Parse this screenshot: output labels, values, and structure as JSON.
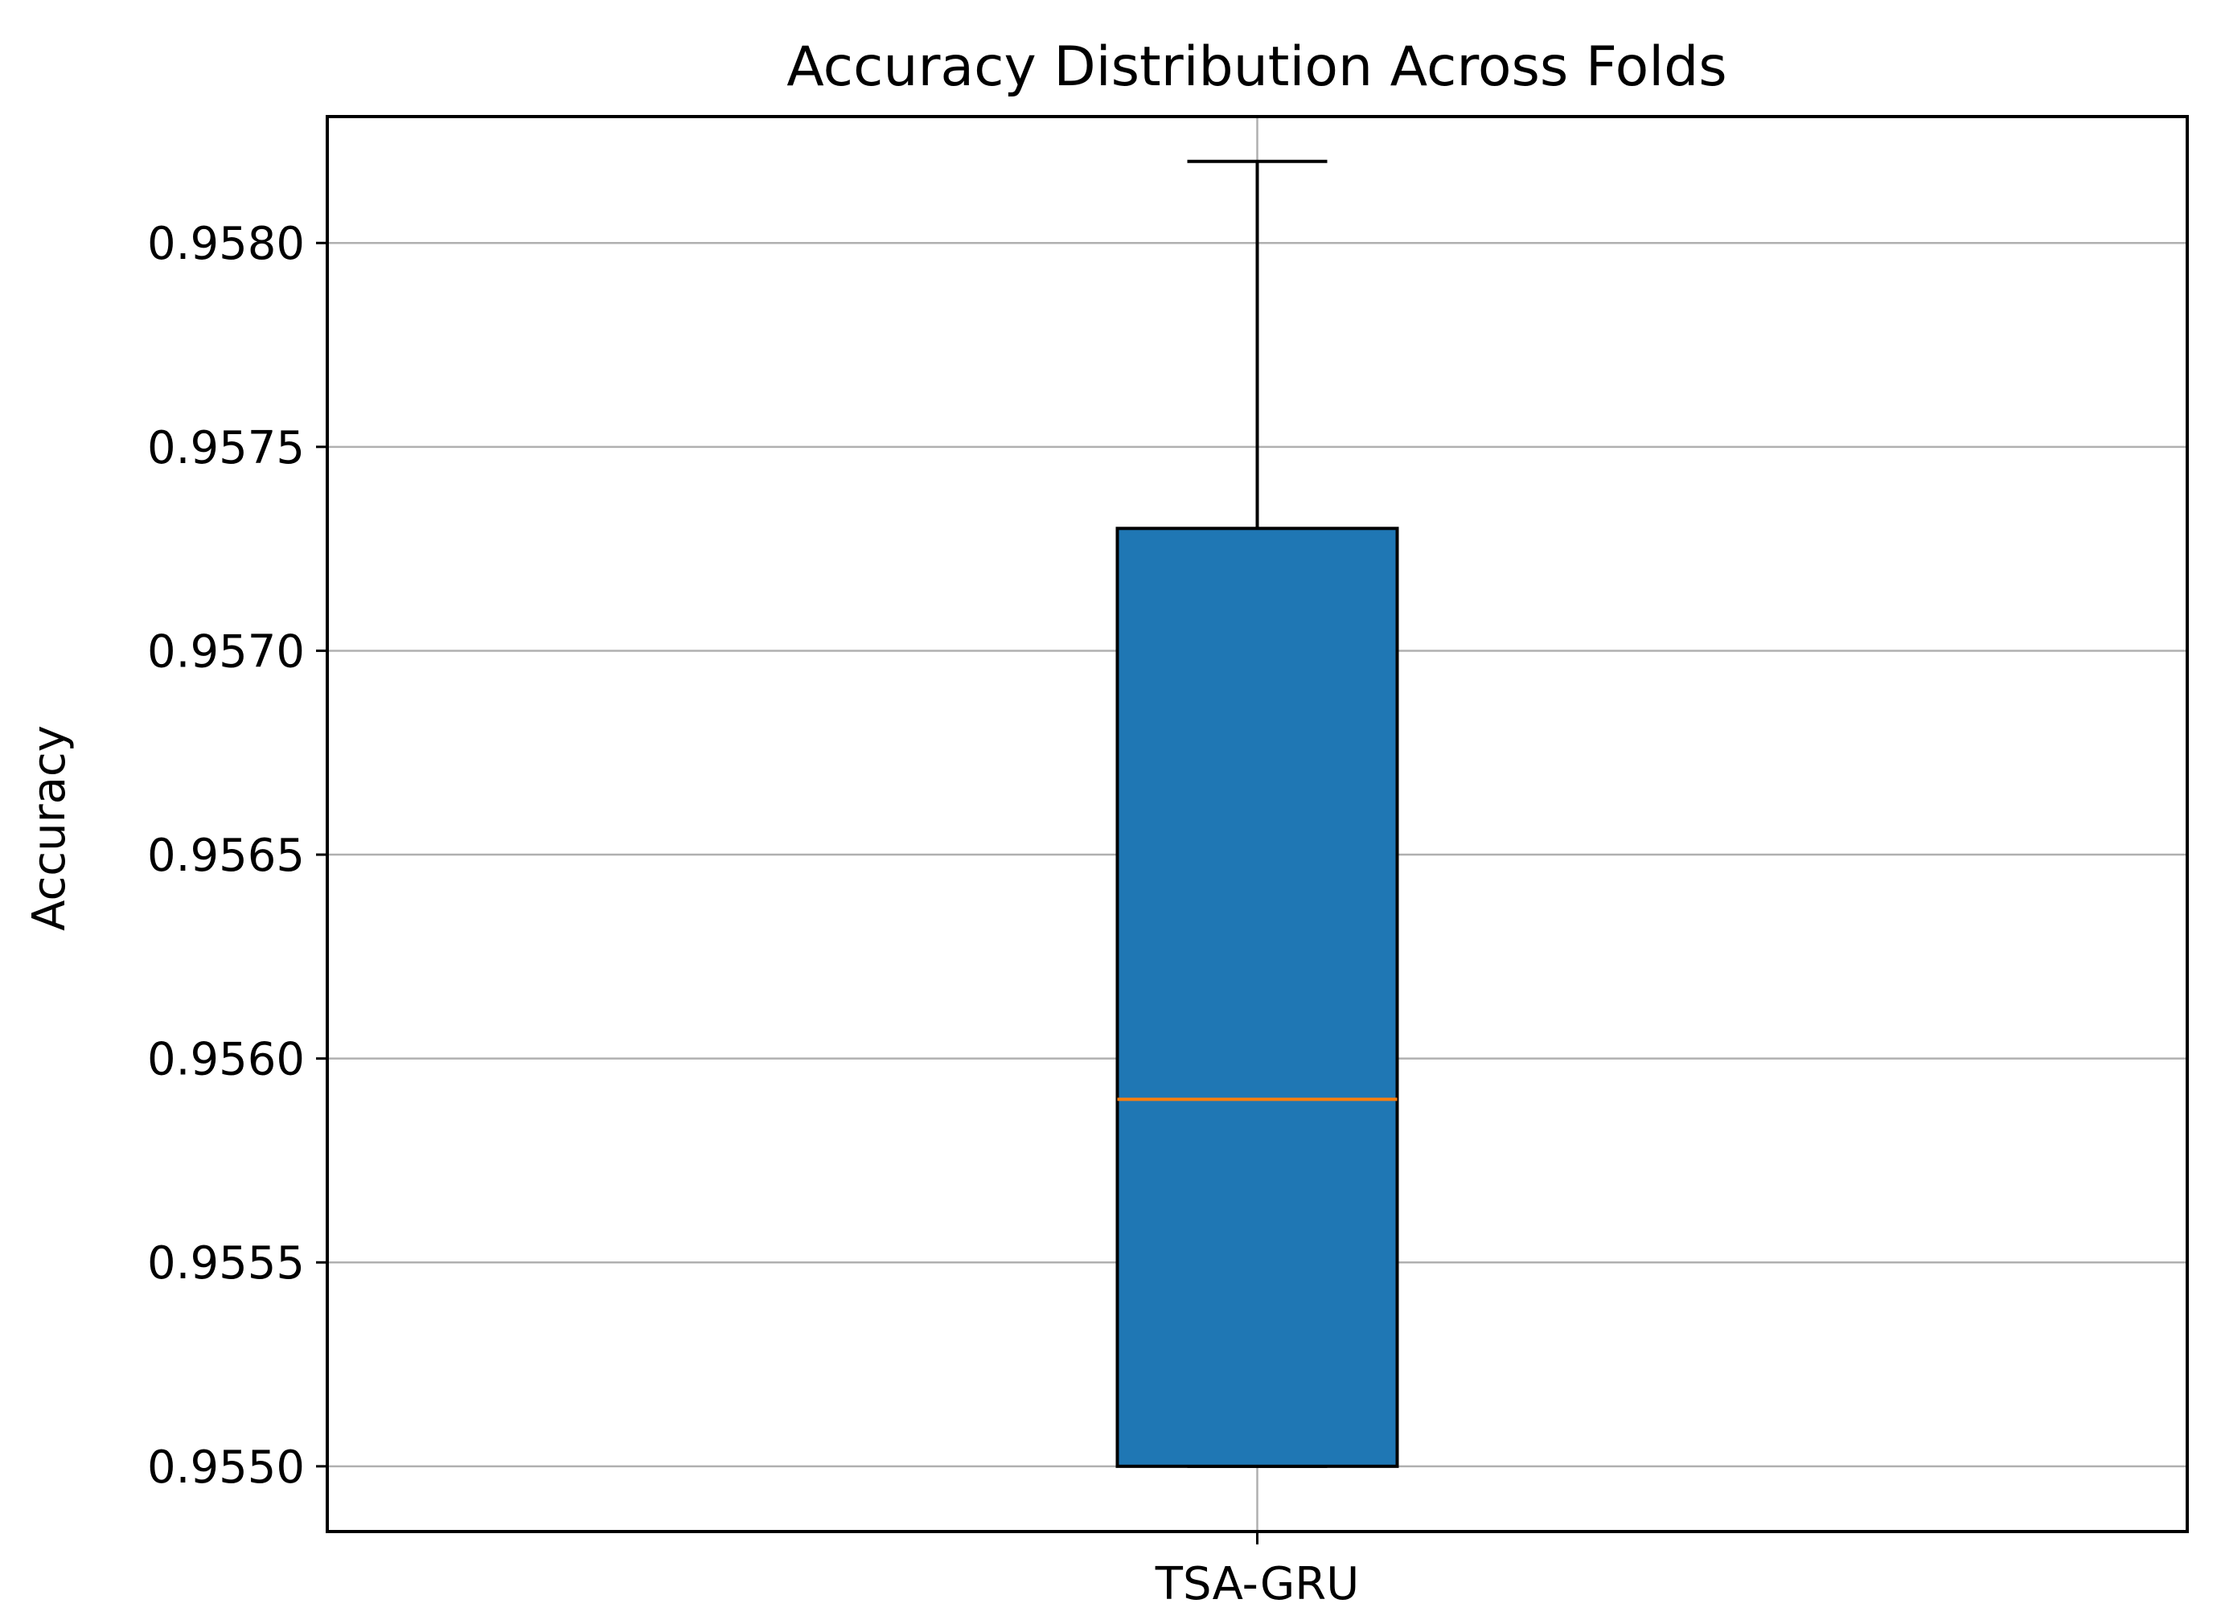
{
  "chart_data": {
    "type": "box",
    "title": "Accuracy Distribution Across Folds",
    "xlabel": "",
    "ylabel": "Accuracy",
    "ylim": [
      0.95484,
      0.95831
    ],
    "yticks": [
      0.955,
      0.9555,
      0.956,
      0.9565,
      0.957,
      0.9575,
      0.958
    ],
    "ytick_labels": [
      "0.9550",
      "0.9555",
      "0.9560",
      "0.9565",
      "0.9570",
      "0.9575",
      "0.9580"
    ],
    "grid": true,
    "categories": [
      "TSA-GRU"
    ],
    "boxes": [
      {
        "category": "TSA-GRU",
        "whisker_low": 0.955,
        "q1": 0.955,
        "median": 0.9559,
        "q3": 0.9573,
        "whisker_high": 0.9582,
        "fill_color": "#1f77b4",
        "median_color": "#ff7f0e"
      }
    ]
  }
}
